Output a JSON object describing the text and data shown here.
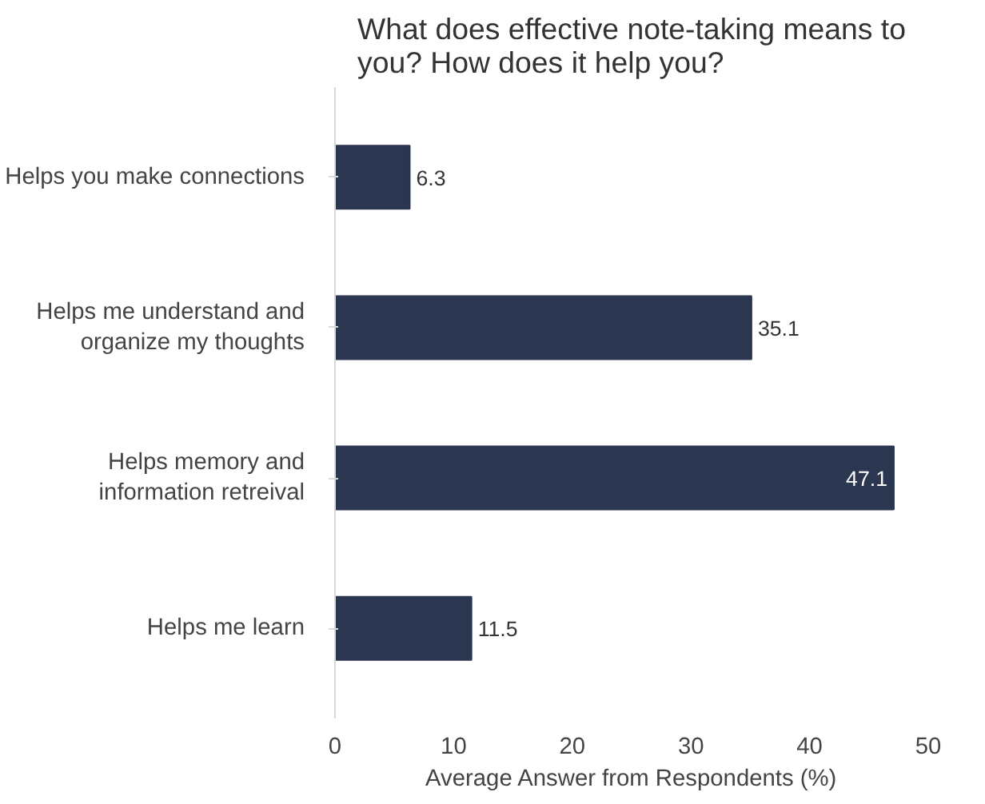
{
  "chart_data": {
    "type": "bar",
    "orientation": "horizontal",
    "title": "What does effective note-taking means to\nyou? How does it help you?",
    "xlabel": "Average Answer from Respondents (%)",
    "categories": [
      "Helps you make connections",
      "Helps me understand and\norganize my thoughts",
      "Helps memory and\ninformation retreival",
      "Helps me learn"
    ],
    "values": [
      6.3,
      35.1,
      47.1,
      11.5
    ],
    "color": "#2b3650",
    "data_labels": true,
    "xlim": [
      0,
      50
    ],
    "xticks": [
      0,
      10,
      20,
      30,
      40,
      50
    ],
    "grid": false
  }
}
